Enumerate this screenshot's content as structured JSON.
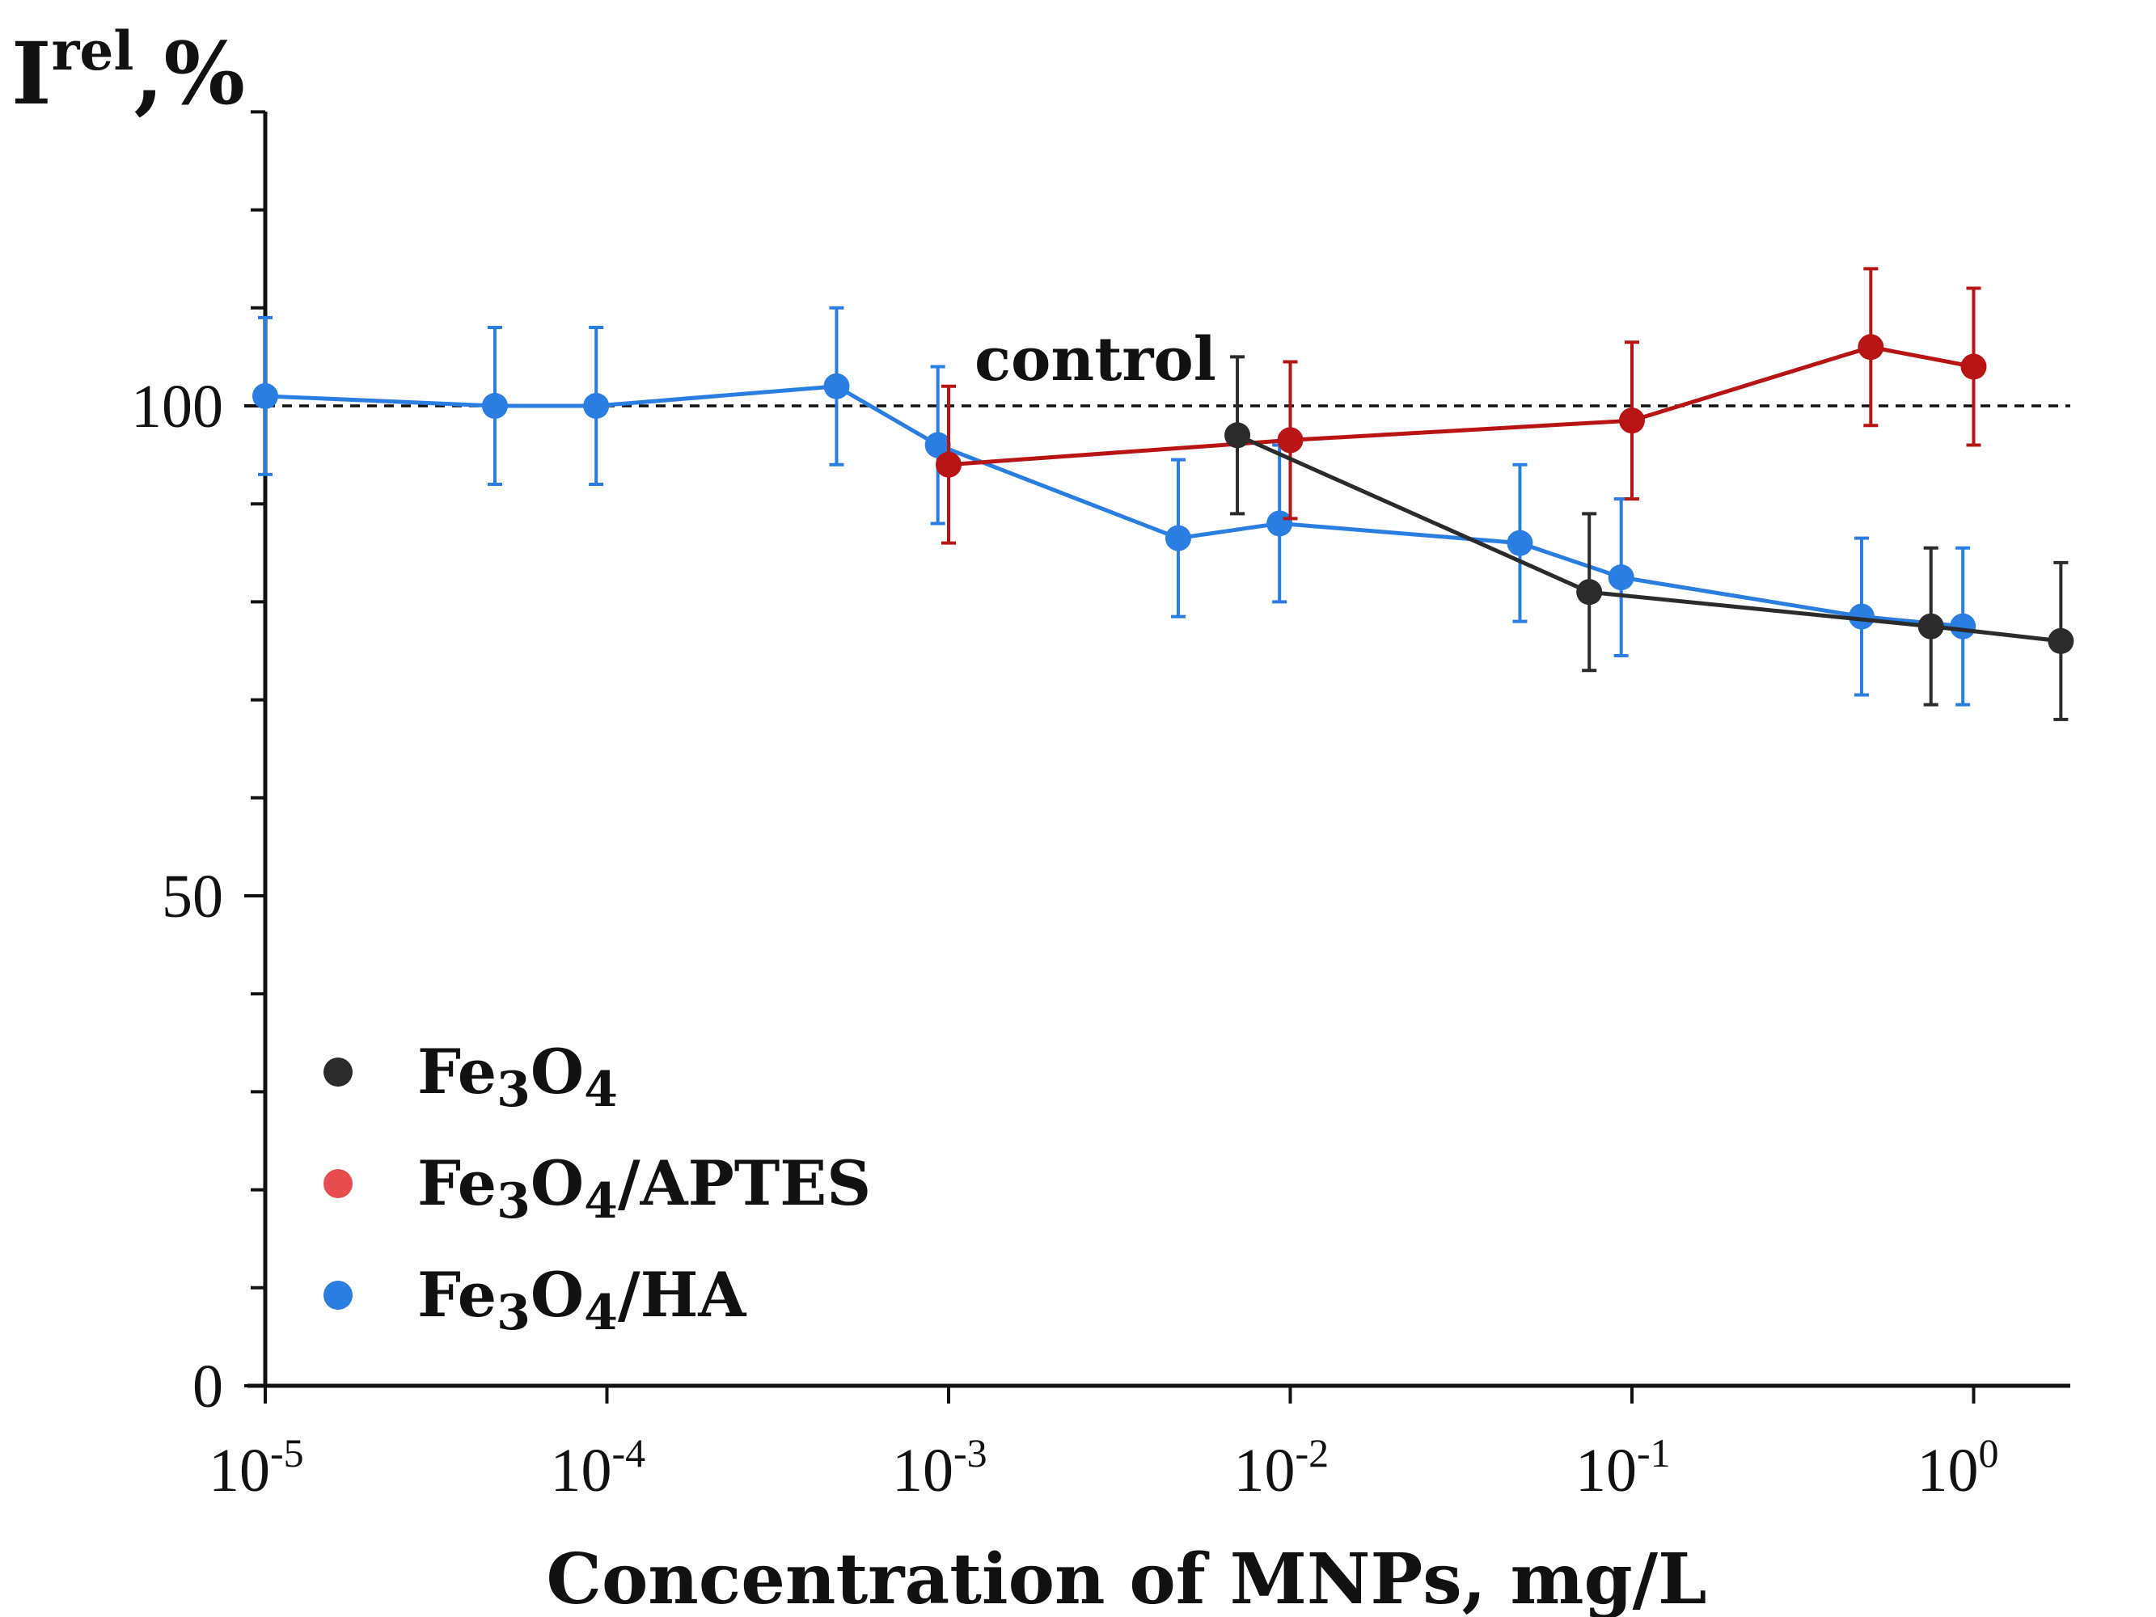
{
  "chart_data": {
    "type": "line",
    "title": "",
    "ylabel": {
      "base": "I",
      "sup": "rel",
      "suffix": ",%"
    },
    "xlabel": "Concentration of MNPs, mg/L",
    "xscale": "log",
    "xlim_exp": [
      -5,
      0.3
    ],
    "ylim": [
      0,
      130
    ],
    "y_ticks": [
      {
        "value": 0,
        "label": "0"
      },
      {
        "value": 50,
        "label": "50"
      },
      {
        "value": 100,
        "label": "100"
      }
    ],
    "x_ticks": [
      {
        "exp": -5,
        "base": "10",
        "sup": "-5"
      },
      {
        "exp": -4,
        "base": "10",
        "sup": "-4"
      },
      {
        "exp": -3,
        "base": "10",
        "sup": "-3"
      },
      {
        "exp": -2,
        "base": "10",
        "sup": "-2"
      },
      {
        "exp": -1,
        "base": "10",
        "sup": "-1"
      },
      {
        "exp": 0,
        "base": "10",
        "sup": "0"
      }
    ],
    "reference_line": {
      "value": 100,
      "label": "control"
    },
    "series": [
      {
        "name": "Fe3O4",
        "label_parts": [
          "Fe",
          "3",
          "O",
          "4",
          ""
        ],
        "color": "#2b2b2b",
        "points": [
          {
            "x": 0.007,
            "y": 97,
            "err": 8
          },
          {
            "x": 0.075,
            "y": 81,
            "err": 8
          },
          {
            "x": 0.75,
            "y": 77.5,
            "err": 8
          },
          {
            "x": 1.8,
            "y": 76,
            "err": 8
          }
        ]
      },
      {
        "name": "Fe3O4/APTES",
        "label_parts": [
          "Fe",
          "3",
          "O",
          "4",
          "/APTES"
        ],
        "color": "#b81414",
        "legend_color": "#e84c4c",
        "points": [
          {
            "x": 0.001,
            "y": 94,
            "err": 8
          },
          {
            "x": 0.01,
            "y": 96.5,
            "err": 8
          },
          {
            "x": 0.1,
            "y": 98.5,
            "err": 8
          },
          {
            "x": 0.5,
            "y": 106,
            "err": 8
          },
          {
            "x": 1.0,
            "y": 104,
            "err": 8
          }
        ]
      },
      {
        "name": "Fe3O4/HA",
        "label_parts": [
          "Fe",
          "3",
          "O",
          "4",
          "/HA"
        ],
        "color": "#2a7de1",
        "points": [
          {
            "x": 1e-05,
            "y": 101,
            "err": 8
          },
          {
            "x": 4.7e-05,
            "y": 100,
            "err": 8
          },
          {
            "x": 9.3e-05,
            "y": 100,
            "err": 8
          },
          {
            "x": 0.00047,
            "y": 102,
            "err": 8
          },
          {
            "x": 0.00093,
            "y": 96,
            "err": 8
          },
          {
            "x": 0.0047,
            "y": 86.5,
            "err": 8
          },
          {
            "x": 0.0093,
            "y": 88,
            "err": 8
          },
          {
            "x": 0.047,
            "y": 86,
            "err": 8
          },
          {
            "x": 0.093,
            "y": 82.5,
            "err": 8
          },
          {
            "x": 0.47,
            "y": 78.5,
            "err": 8
          },
          {
            "x": 0.93,
            "y": 77.5,
            "err": 8
          }
        ]
      }
    ]
  }
}
